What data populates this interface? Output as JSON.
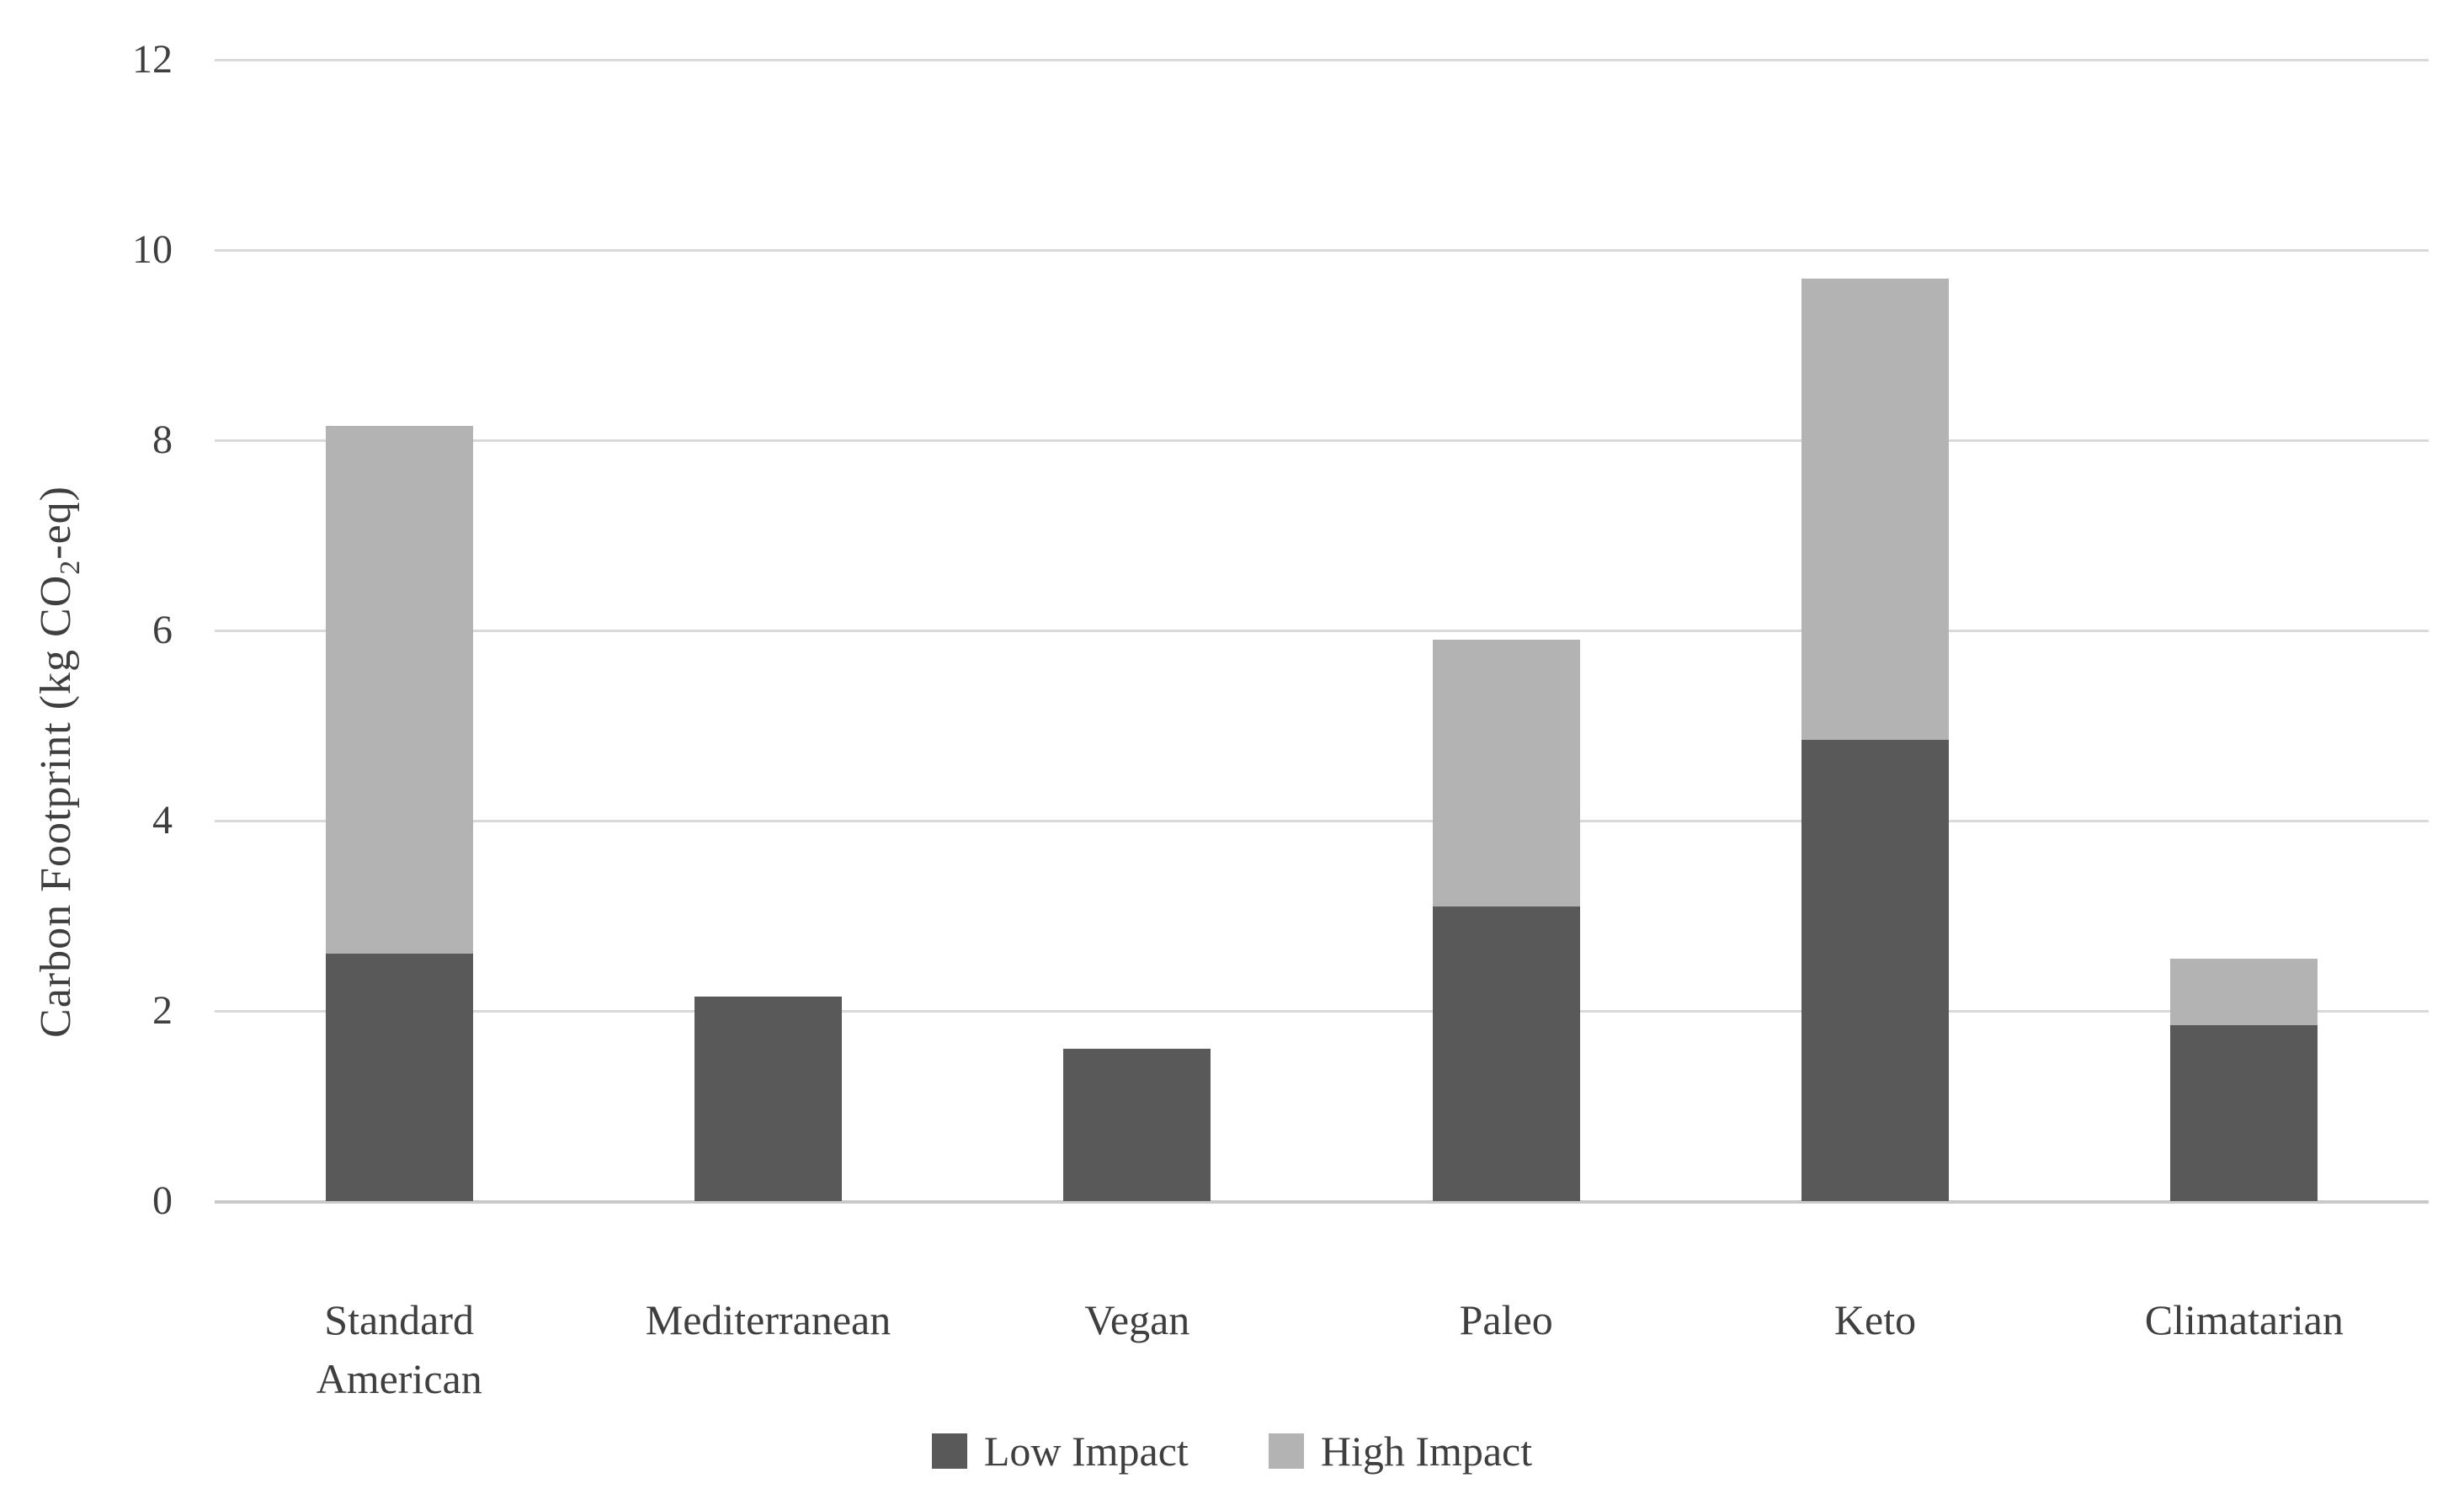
{
  "chart_data": {
    "type": "bar",
    "stacked": true,
    "title": "",
    "categories": [
      "Standard American",
      "Mediterranean",
      "Vegan",
      "Paleo",
      "Keto",
      "Climatarian"
    ],
    "category_label_lines": [
      [
        "Standard",
        "American"
      ],
      [
        "Mediterranean"
      ],
      [
        "Vegan"
      ],
      [
        "Paleo"
      ],
      [
        "Keto"
      ],
      [
        "Climatarian"
      ]
    ],
    "series": [
      {
        "name": "Low Impact",
        "color": "#595959",
        "values": [
          2.6,
          2.15,
          1.6,
          3.1,
          4.85,
          1.85
        ]
      },
      {
        "name": "High Impact",
        "color": "#b3b3b3",
        "values": [
          5.55,
          0,
          0,
          2.8,
          4.85,
          0.7
        ]
      }
    ],
    "totals": [
      8.15,
      2.15,
      1.6,
      5.9,
      9.7,
      2.55
    ],
    "ylabel": "Carbon Footprint (kg CO₂-eq)",
    "ylabel_parts": {
      "pre": "Carbon Footprint (kg CO",
      "sub": "2",
      "post": "-eq)"
    },
    "xlabel": "",
    "ylim": [
      0,
      12
    ],
    "yticks": [
      0,
      2,
      4,
      6,
      8,
      10,
      12
    ],
    "grid": true,
    "legend_position": "bottom",
    "colors": {
      "grid": "#d9d9d9",
      "baseline": "#c9c9c9",
      "text": "#3f3f3f",
      "background": "#ffffff"
    }
  }
}
